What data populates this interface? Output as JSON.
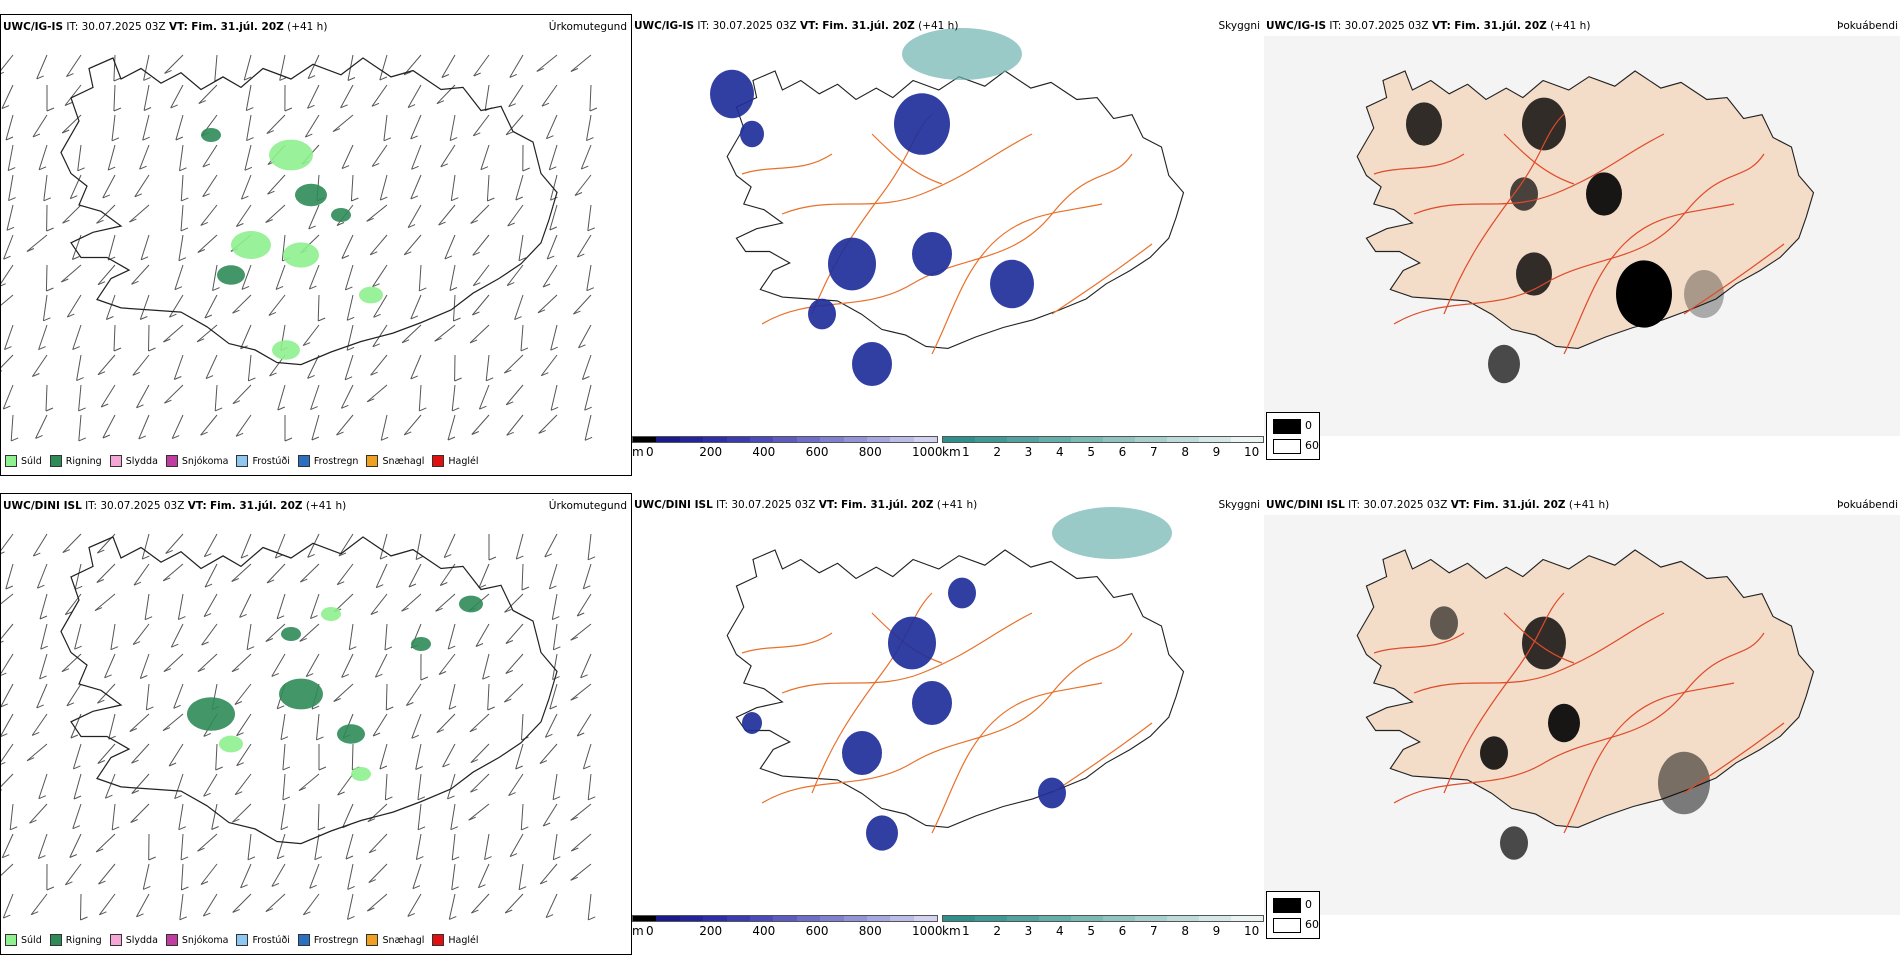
{
  "rows": [
    {
      "model": "UWC/IG-IS",
      "it_label": "IT:",
      "it_value": "30.07.2025 03Z",
      "vt_label": "VT:",
      "vt_value": "Fim. 31.júl. 20Z",
      "lead": "(+41 h)"
    },
    {
      "model": "UWC/DINI ISL",
      "it_label": "IT:",
      "it_value": "30.07.2025 03Z",
      "vt_label": "VT:",
      "vt_value": "Fim. 31.júl. 20Z",
      "lead": "(+41 h)"
    }
  ],
  "panel_titles": {
    "precip": "Úrkomutegund",
    "cloud": "Skyggni",
    "fog": "Þokuábendi"
  },
  "precip_legend": [
    {
      "label": "Súld",
      "color": "#8ef08e"
    },
    {
      "label": "Rigning",
      "color": "#2e8b57"
    },
    {
      "label": "Slydda",
      "color": "#f4a6d7"
    },
    {
      "label": "Snjókoma",
      "color": "#c03ca0"
    },
    {
      "label": "Frostúði",
      "color": "#8ec8f0"
    },
    {
      "label": "Frostregn",
      "color": "#2a6fc0"
    },
    {
      "label": "Snæhagl",
      "color": "#f0a020"
    },
    {
      "label": "Haglél",
      "color": "#e01010"
    }
  ],
  "height_bar": {
    "unit": "m",
    "ticks": [
      "0",
      "200",
      "400",
      "600",
      "800",
      "1000"
    ],
    "colors": [
      "#000000",
      "#1a1a8c",
      "#23239c",
      "#2e2ea8",
      "#3b3bb0",
      "#4a4ab8",
      "#5c5cc0",
      "#6e6ec8",
      "#8080d0",
      "#9393d8",
      "#a6a6e0",
      "#bcbce8",
      "#d2d2f0"
    ]
  },
  "visibility_bar": {
    "unit": "km",
    "ticks": [
      "1",
      "2",
      "3",
      "4",
      "5",
      "6",
      "7",
      "8",
      "9",
      "10"
    ],
    "colors": [
      "#2f8f8a",
      "#3f9994",
      "#52a39f",
      "#66aeaa",
      "#7bb9b5",
      "#91c4c1",
      "#a7cfcd",
      "#bedbd9",
      "#d5e8e7",
      "#ebf4f3"
    ]
  },
  "fog_legend": [
    {
      "label": "0",
      "color": "#000000"
    },
    {
      "label": "60",
      "color": "#ffffff"
    }
  ],
  "colors": {
    "road": "#e8712a",
    "coast": "#222222",
    "land_fog": "#f3dcc8",
    "low_cloud": "#1f2f9a",
    "drizzle": "#8ef08e",
    "rain": "#2e8b57"
  }
}
